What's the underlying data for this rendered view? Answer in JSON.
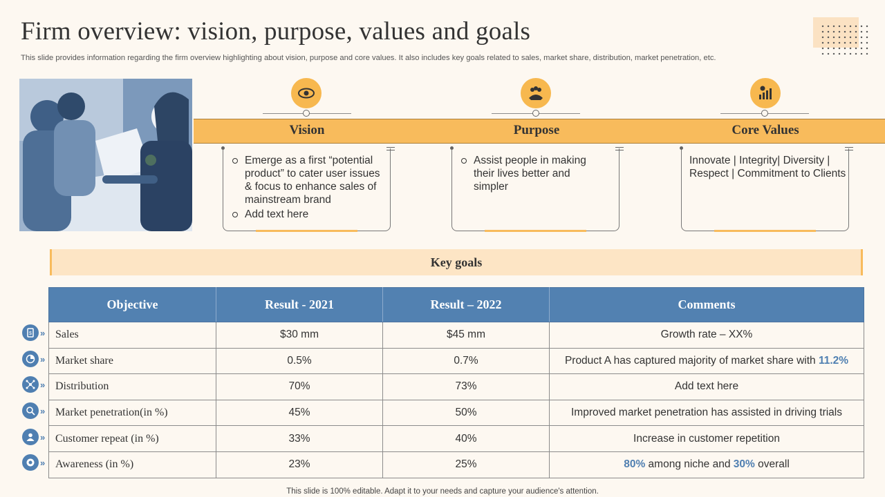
{
  "title": "Firm overview: vision, purpose, values and goals",
  "subtitle": "This slide provides information regarding the firm overview highlighting about vision, purpose and core values. It also includes key goals related to sales, market share, distribution, market penetration, etc.",
  "colors": {
    "background": "#fdf8f1",
    "accent_orange": "#f8bb5c",
    "accent_blue": "#5281b1"
  },
  "columns": [
    {
      "icon": "eye-icon",
      "heading": "Vision",
      "bullets": [
        "Emerge as a first “potential product” to cater user issues & focus to enhance sales of mainstream brand",
        "Add text here"
      ]
    },
    {
      "icon": "team-icon",
      "heading": "Purpose",
      "bullets": [
        "Assist people in making their lives better and simpler"
      ]
    },
    {
      "icon": "growth-chart-icon",
      "heading": "Core Values",
      "text": "Innovate  | Integrity|  Diversity | Respect |  Commitment to Clients"
    }
  ],
  "key_goals": {
    "heading": "Key goals",
    "headers": [
      "Objective",
      "Result - 2021",
      "Result – 2022",
      "Comments"
    ],
    "rows": [
      {
        "icon": "sales-icon",
        "objective": "Sales",
        "r2021": "$30 mm",
        "r2022": "$45 mm",
        "comment": "Growth rate – XX%"
      },
      {
        "icon": "market-share-icon",
        "objective": "Market share",
        "r2021": "0.5%",
        "r2022": "0.7%",
        "comment_pre": "Product A has captured majority of market share with ",
        "comment_hl": "11.2%"
      },
      {
        "icon": "distribution-icon",
        "objective": "Distribution",
        "r2021": "70%",
        "r2022": "73%",
        "comment": "Add text here"
      },
      {
        "icon": "magnifier-icon",
        "objective": "Market penetration(in %)",
        "r2021": "45%",
        "r2022": "50%",
        "comment": "Improved market penetration has assisted in driving trials"
      },
      {
        "icon": "customer-icon",
        "objective": "Customer repeat (in %)",
        "r2021": "33%",
        "r2022": "40%",
        "comment": "Increase in customer repetition"
      },
      {
        "icon": "awareness-icon",
        "objective": "Awareness (in %)",
        "r2021": "23%",
        "r2022": "25%",
        "comment_hl1": "80%",
        "comment_mid": " among niche and ",
        "comment_hl2": "30%",
        "comment_post": " overall"
      }
    ]
  },
  "footer": "This slide is 100% editable. Adapt it to your needs and capture your audience's attention."
}
